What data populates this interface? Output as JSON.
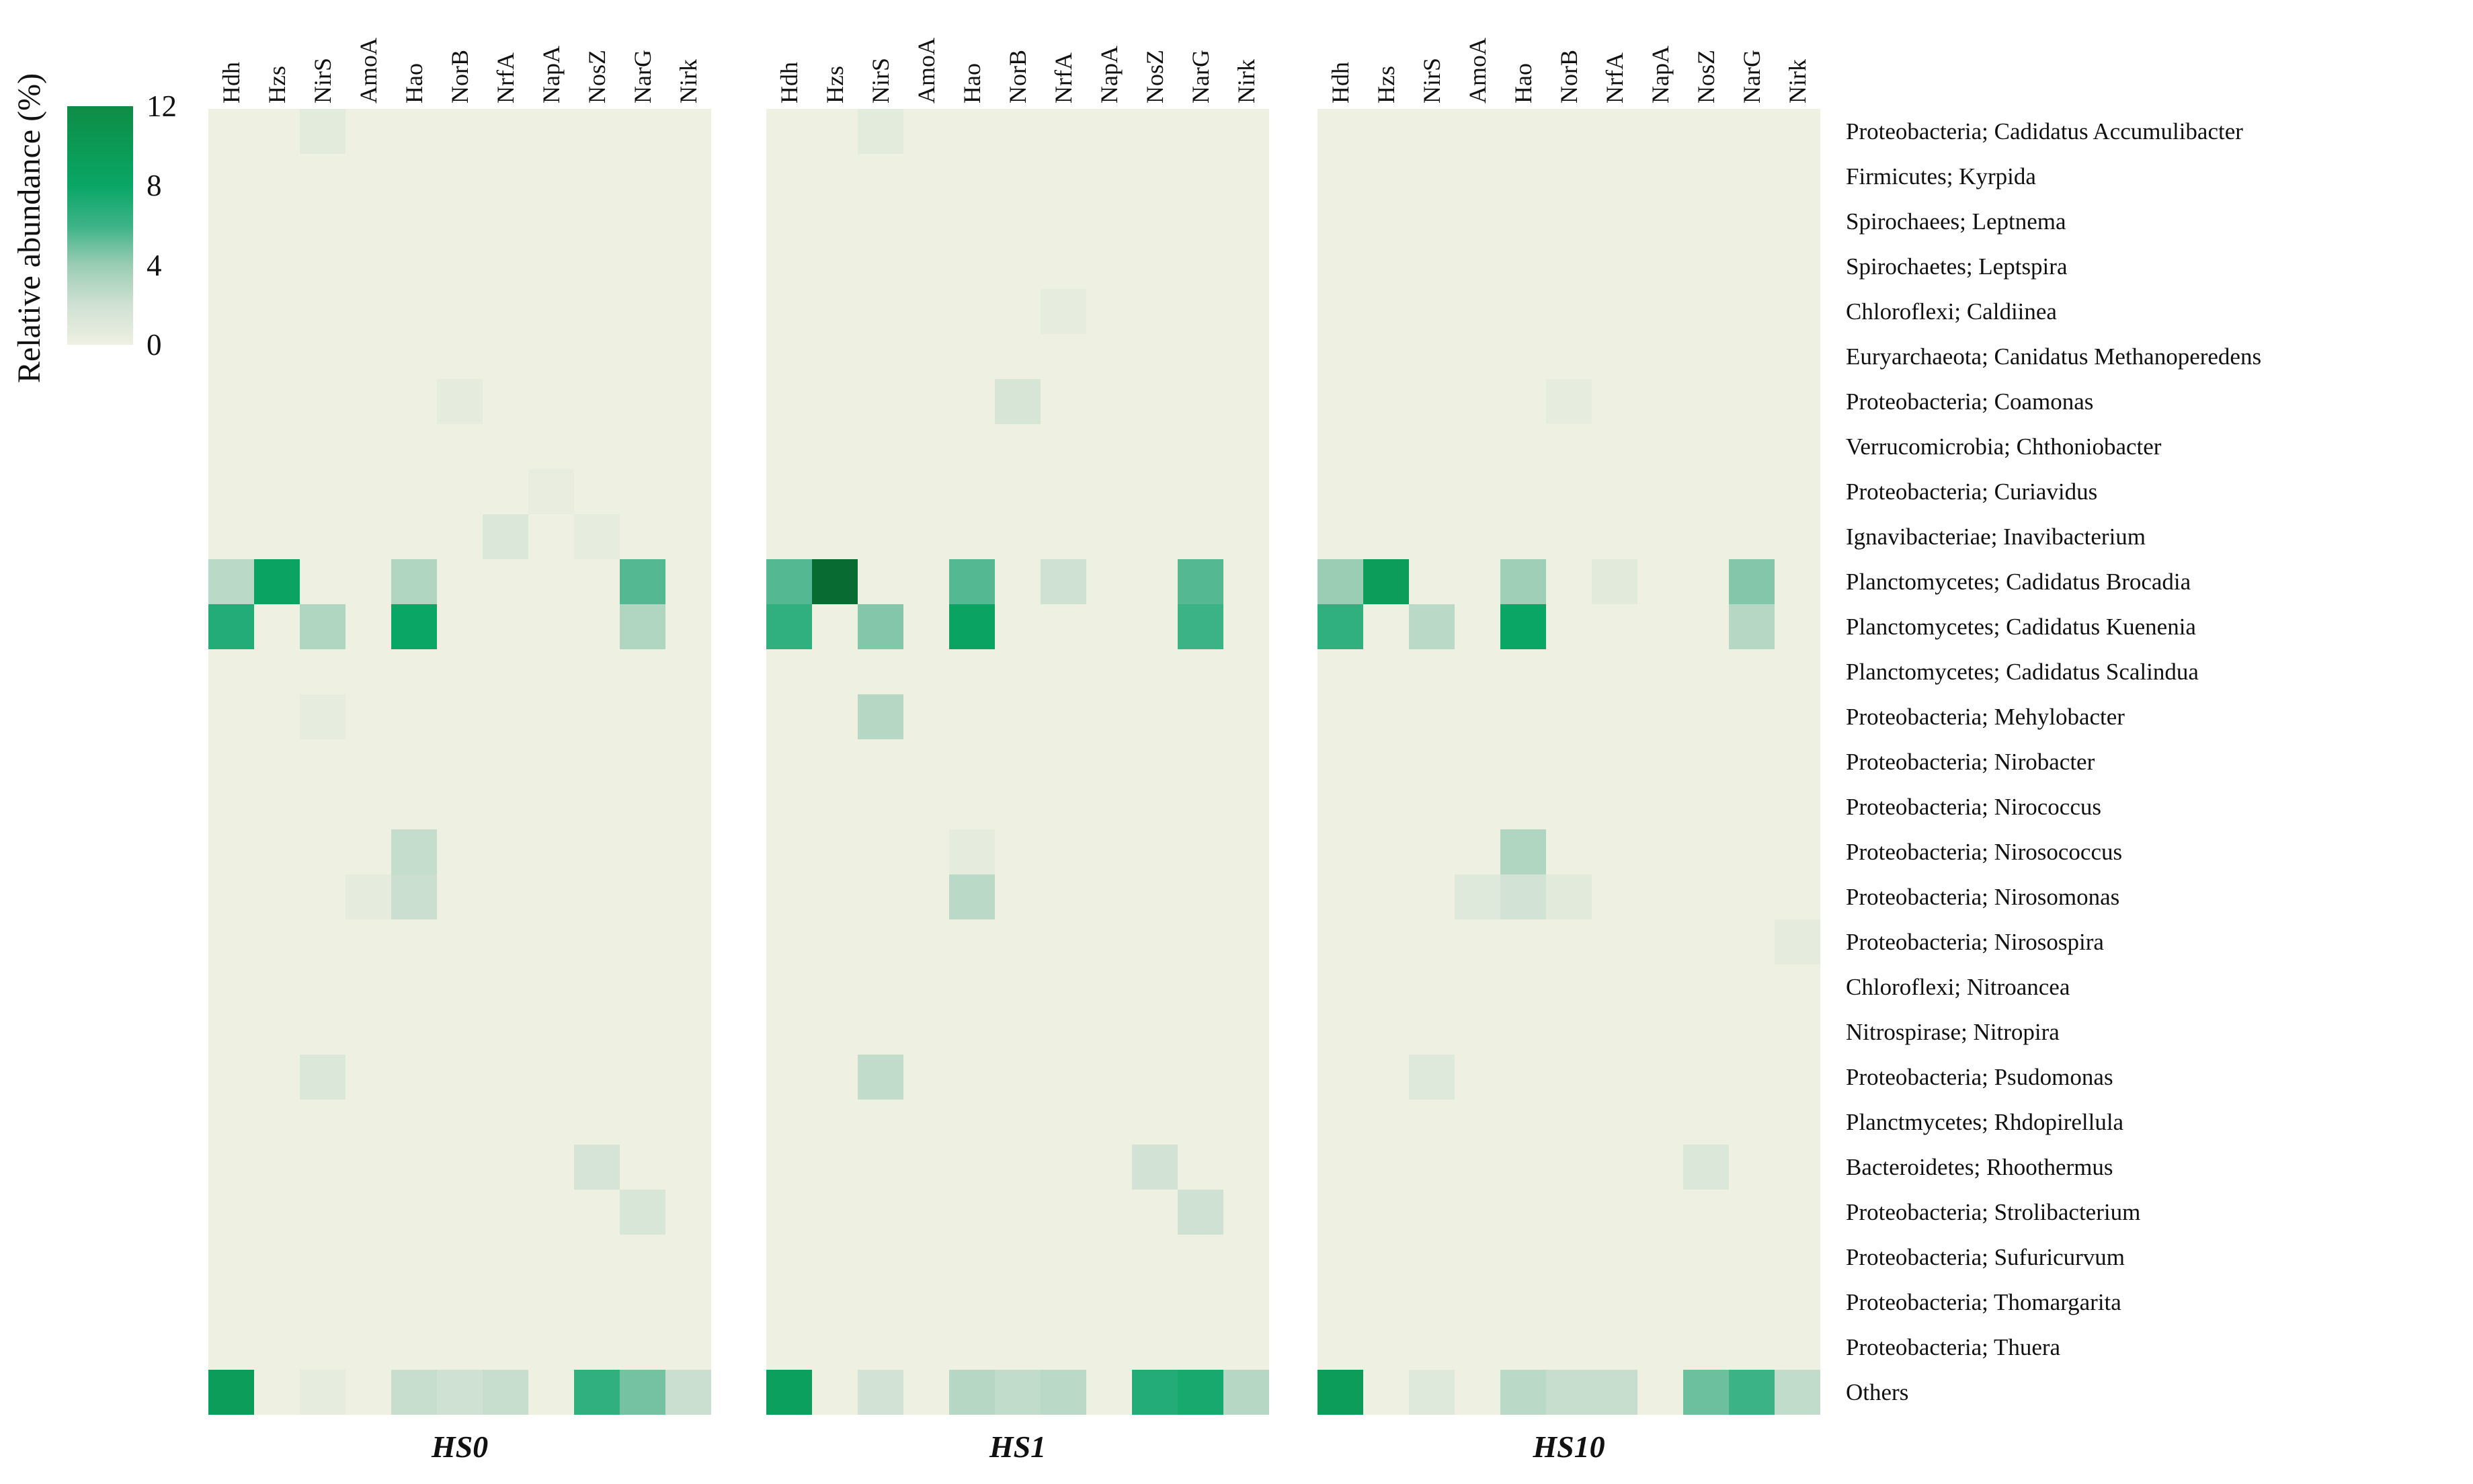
{
  "chart_data": {
    "type": "heatmap",
    "title": "",
    "colorbar": {
      "label": "Relative abundance (%)",
      "ticks": [
        12,
        8,
        4,
        0
      ],
      "range": [
        0,
        12
      ],
      "position": "left"
    },
    "color_scale": [
      [
        0,
        "#eef0e2"
      ],
      [
        2,
        "#cfe1d3"
      ],
      [
        4,
        "#9bcdb4"
      ],
      [
        6,
        "#3cb287"
      ],
      [
        8,
        "#0aa666"
      ],
      [
        10,
        "#0b9a55"
      ],
      [
        12,
        "#0e8c45"
      ],
      [
        16,
        "#014a1e"
      ]
    ],
    "columns": [
      "Hdh",
      "Hzs",
      "NirS",
      "AmoA",
      "Hao",
      "NorB",
      "NrfA",
      "NapA",
      "NosZ",
      "NarG",
      "Nirk"
    ],
    "rows": [
      "Proteobacteria; Cadidatus Accumulibacter",
      "Firmicutes; Kyrpida",
      "Spirochaees; Leptnema",
      "Spirochaetes; Leptspira",
      "Chloroflexi; Caldiinea",
      "Euryarchaeota; Canidatus Methanoperedens",
      "Proteobacteria; Coamonas",
      "Verrucomicrobia; Chthoniobacter",
      "Proteobacteria; Curiavidus",
      "Ignavibacteriae; Inavibacterium",
      "Planctomycetes; Cadidatus Brocadia",
      "Planctomycetes; Cadidatus Kuenenia",
      "Planctomycetes; Cadidatus Scalindua",
      "Proteobacteria; Mehylobacter",
      "Proteobacteria; Nirobacter",
      "Proteobacteria; Nirococcus",
      "Proteobacteria; Nirosococcus",
      "Proteobacteria; Nirosomonas",
      "Proteobacteria; Nirosospira",
      "Chloroflexi; Nitroancea",
      "Nitrospirase; Nitropira",
      "Proteobacteria; Psudomonas",
      "Planctmycetes; Rhdopirellula",
      "Bacteroidetes; Rhoothermus",
      "Proteobacteria; Strolibacterium",
      "Proteobacteria; Sufuricurvum",
      "Proteobacteria; Thomargarita",
      "Proteobacteria; Thuera",
      "Others"
    ],
    "panels": [
      {
        "name": "HS0",
        "cells": [
          [
            0,
            2,
            0.7
          ],
          [
            6,
            5,
            0.6
          ],
          [
            8,
            7,
            0.4
          ],
          [
            9,
            6,
            1.2
          ],
          [
            9,
            8,
            0.5
          ],
          [
            10,
            0,
            2.8
          ],
          [
            10,
            1,
            8.5
          ],
          [
            10,
            4,
            3.2
          ],
          [
            10,
            9,
            5.5
          ],
          [
            11,
            0,
            7
          ],
          [
            11,
            2,
            3.2
          ],
          [
            11,
            4,
            8
          ],
          [
            11,
            9,
            3.2
          ],
          [
            13,
            2,
            0.5
          ],
          [
            16,
            4,
            2.4
          ],
          [
            17,
            3,
            0.6
          ],
          [
            17,
            4,
            2.2
          ],
          [
            21,
            2,
            1.2
          ],
          [
            23,
            8,
            1.6
          ],
          [
            24,
            9,
            1.4
          ],
          [
            28,
            0,
            9.5
          ],
          [
            28,
            2,
            0.5
          ],
          [
            28,
            4,
            2.3
          ],
          [
            28,
            5,
            2
          ],
          [
            28,
            6,
            2.3
          ],
          [
            28,
            8,
            6.5
          ],
          [
            28,
            9,
            4.8
          ],
          [
            28,
            10,
            2.2
          ]
        ]
      },
      {
        "name": "HS1",
        "cells": [
          [
            0,
            2,
            0.7
          ],
          [
            4,
            6,
            0.5
          ],
          [
            6,
            5,
            1.5
          ],
          [
            10,
            0,
            5.5
          ],
          [
            10,
            1,
            14
          ],
          [
            10,
            4,
            5.5
          ],
          [
            10,
            6,
            2
          ],
          [
            10,
            9,
            5.5
          ],
          [
            11,
            0,
            6.5
          ],
          [
            11,
            2,
            4.5
          ],
          [
            11,
            4,
            8.5
          ],
          [
            11,
            9,
            6
          ],
          [
            13,
            2,
            3
          ],
          [
            16,
            4,
            0.6
          ],
          [
            17,
            4,
            2.8
          ],
          [
            21,
            2,
            2.5
          ],
          [
            23,
            8,
            1.8
          ],
          [
            24,
            9,
            2
          ],
          [
            28,
            0,
            9
          ],
          [
            28,
            2,
            1.8
          ],
          [
            28,
            4,
            3
          ],
          [
            28,
            5,
            2.5
          ],
          [
            28,
            6,
            2.8
          ],
          [
            28,
            8,
            7
          ],
          [
            28,
            9,
            7.5
          ],
          [
            28,
            10,
            3
          ]
        ]
      },
      {
        "name": "HS10",
        "cells": [
          [
            6,
            5,
            0.5
          ],
          [
            10,
            0,
            4
          ],
          [
            10,
            1,
            9.5
          ],
          [
            10,
            4,
            3.8
          ],
          [
            10,
            6,
            0.8
          ],
          [
            10,
            9,
            4.5
          ],
          [
            11,
            0,
            6.5
          ],
          [
            11,
            2,
            2.8
          ],
          [
            11,
            4,
            8
          ],
          [
            11,
            9,
            3
          ],
          [
            16,
            4,
            3.2
          ],
          [
            17,
            3,
            1
          ],
          [
            17,
            4,
            1.8
          ],
          [
            17,
            5,
            0.8
          ],
          [
            18,
            10,
            0.6
          ],
          [
            21,
            2,
            1
          ],
          [
            23,
            8,
            1.2
          ],
          [
            28,
            0,
            9.5
          ],
          [
            28,
            2,
            1
          ],
          [
            28,
            4,
            2.8
          ],
          [
            28,
            5,
            2.3
          ],
          [
            28,
            6,
            2.3
          ],
          [
            28,
            8,
            5
          ],
          [
            28,
            9,
            6
          ],
          [
            28,
            10,
            2.5
          ]
        ]
      }
    ],
    "layout": {
      "grid": false,
      "cell_gap": 0,
      "panel_gap_color": "#ffffff"
    }
  }
}
